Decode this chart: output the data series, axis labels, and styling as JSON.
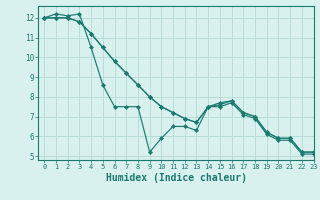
{
  "xlabel": "Humidex (Indice chaleur)",
  "bg_color": "#d8f0ee",
  "grid_color": "#b8dcd8",
  "line_color": "#1a7a6e",
  "series": [
    [
      12.0,
      12.2,
      12.1,
      12.2,
      10.5,
      8.6,
      7.5,
      7.5,
      7.5,
      5.2,
      5.9,
      6.5,
      6.5,
      6.3,
      7.5,
      7.7,
      7.8,
      7.2,
      7.0,
      6.2,
      5.9,
      5.9,
      5.2,
      5.2
    ],
    [
      12.0,
      12.0,
      12.0,
      11.8,
      11.2,
      10.5,
      9.8,
      9.2,
      8.6,
      8.0,
      7.5,
      7.2,
      6.9,
      6.7,
      7.5,
      7.6,
      7.8,
      7.2,
      7.0,
      6.2,
      5.9,
      5.9,
      5.2,
      5.2
    ],
    [
      12.0,
      12.0,
      12.0,
      11.8,
      11.2,
      10.5,
      9.8,
      9.2,
      8.6,
      8.0,
      7.5,
      7.2,
      6.9,
      6.7,
      7.5,
      7.5,
      7.7,
      7.1,
      6.9,
      6.1,
      5.8,
      5.8,
      5.1,
      5.1
    ]
  ],
  "xlim": [
    -0.5,
    23
  ],
  "ylim": [
    4.8,
    12.6
  ],
  "yticks": [
    5,
    6,
    7,
    8,
    9,
    10,
    11,
    12
  ],
  "xticks": [
    0,
    1,
    2,
    3,
    4,
    5,
    6,
    7,
    8,
    9,
    10,
    11,
    12,
    13,
    14,
    15,
    16,
    17,
    18,
    19,
    20,
    21,
    22,
    23
  ],
  "tick_fontsize": 5.5,
  "xlabel_fontsize": 7.0
}
